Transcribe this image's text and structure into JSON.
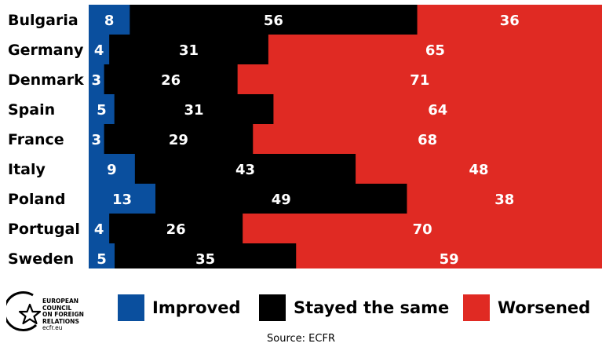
{
  "chart_data": {
    "type": "bar",
    "orientation": "horizontal",
    "stacked": true,
    "normalized_percent": true,
    "categories": [
      "Bulgaria",
      "Germany",
      "Denmark",
      "Spain",
      "France",
      "Italy",
      "Poland",
      "Portugal",
      "Sweden"
    ],
    "series": [
      {
        "name": "Improved",
        "color": "#0a4f9e",
        "values": [
          8,
          4,
          3,
          5,
          3,
          9,
          13,
          4,
          5
        ]
      },
      {
        "name": "Stayed the same",
        "color": "#000000",
        "values": [
          56,
          31,
          26,
          31,
          29,
          43,
          49,
          26,
          35
        ]
      },
      {
        "name": "Worsened",
        "color": "#e02a23",
        "values": [
          36,
          65,
          71,
          64,
          68,
          48,
          38,
          70,
          59
        ]
      }
    ],
    "data_labels": true,
    "legend_position": "bottom",
    "grid": false
  },
  "legend": {
    "items": [
      {
        "label": "Improved",
        "color": "#0a4f9e"
      },
      {
        "label": "Stayed the same",
        "color": "#000000"
      },
      {
        "label": "Worsened",
        "color": "#e02a23"
      }
    ]
  },
  "branding": {
    "logo_text": [
      "EUROPEAN",
      "COUNCIL",
      "ON FOREIGN",
      "RELATIONS"
    ],
    "logo_url": "ecfr.eu",
    "logo_icon": "star-circle-logo-icon"
  },
  "source": "Source: ECFR"
}
